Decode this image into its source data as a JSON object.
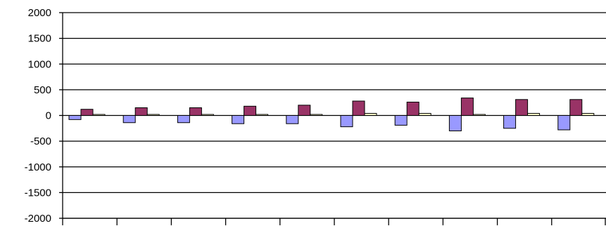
{
  "chart_data": {
    "type": "bar",
    "title": "",
    "xlabel": "",
    "ylabel": "",
    "ylim": [
      -2000,
      2000
    ],
    "yticks": [
      2000,
      1500,
      1000,
      500,
      0,
      -500,
      -1000,
      -1500,
      -2000
    ],
    "ytick_labels": [
      "2000",
      "1500",
      "1000",
      "500",
      "0",
      "-500",
      "-1000",
      "-1500",
      "-2000"
    ],
    "categories": [
      "",
      "",
      "",
      "",
      "",
      "",
      "",
      "",
      "",
      ""
    ],
    "grid": true,
    "legend": "none",
    "series": [
      {
        "color": "#9999ff",
        "values": [
          -80,
          -140,
          -140,
          -160,
          -160,
          -220,
          -190,
          -300,
          -250,
          -280
        ]
      },
      {
        "color": "#993366",
        "values": [
          120,
          150,
          150,
          180,
          200,
          280,
          260,
          340,
          310,
          310
        ]
      },
      {
        "color": "#ffffcc",
        "values": [
          20,
          20,
          20,
          20,
          20,
          40,
          40,
          20,
          40,
          40
        ]
      }
    ]
  }
}
